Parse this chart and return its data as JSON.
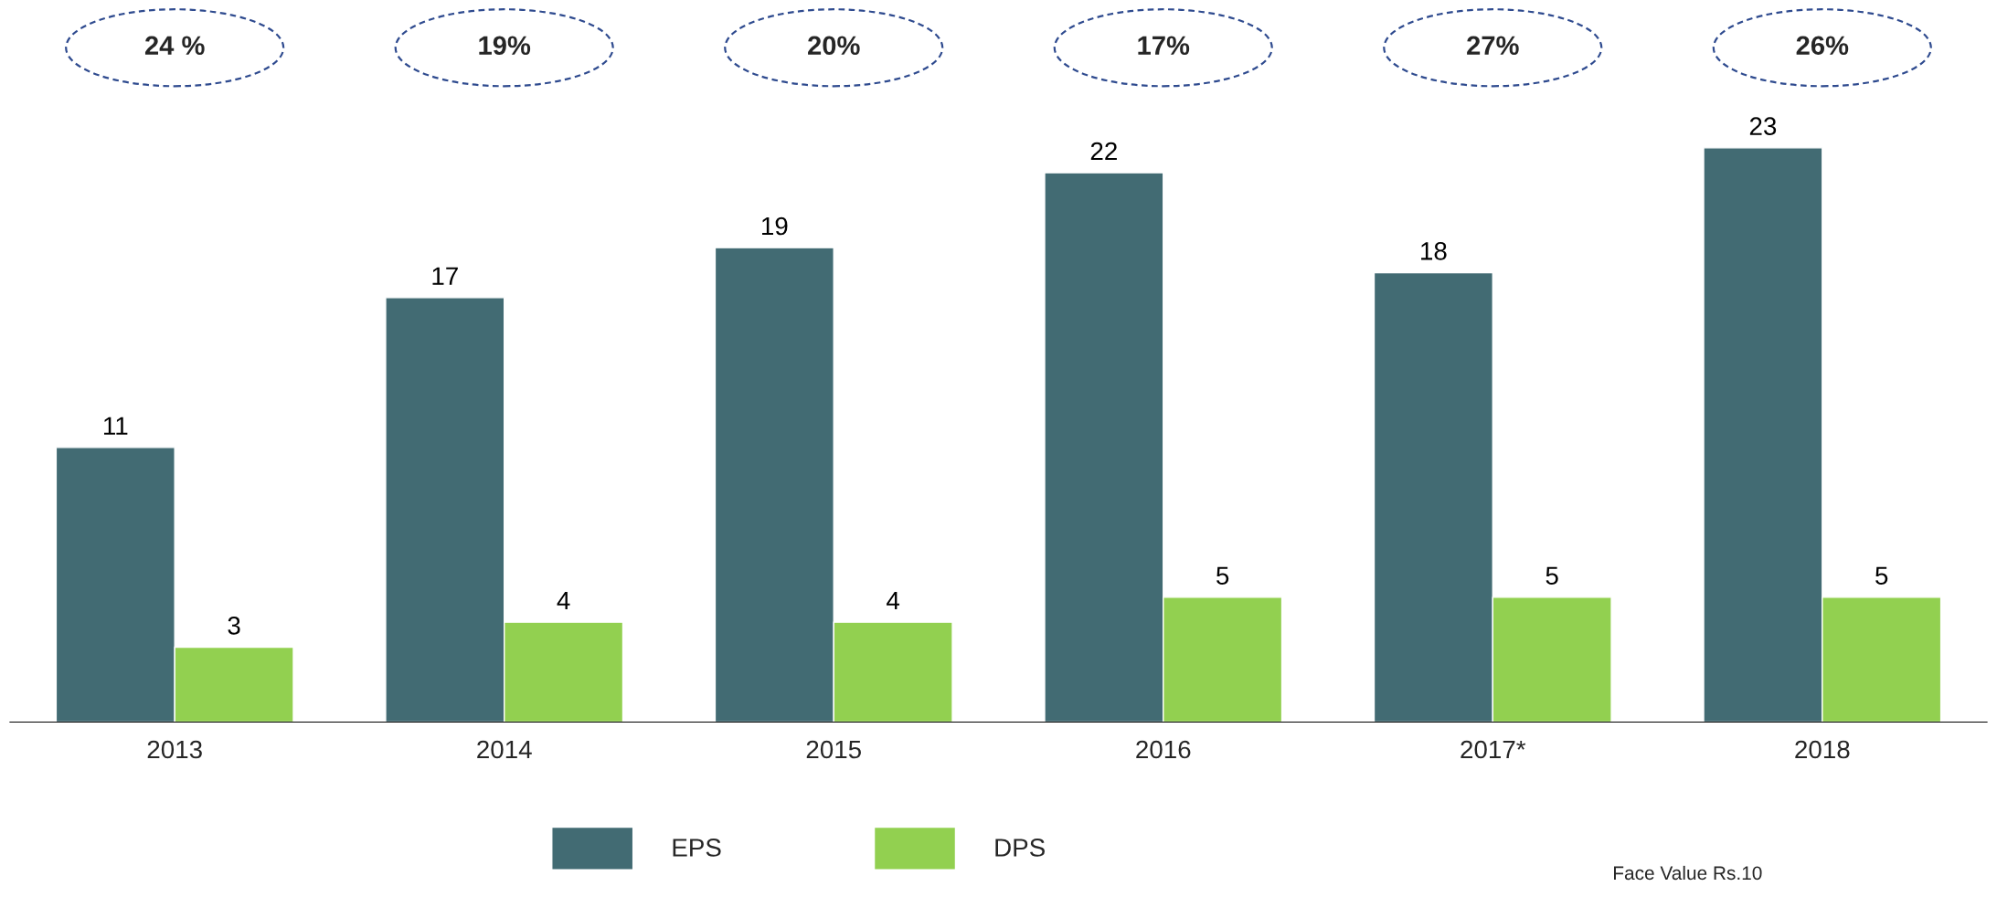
{
  "chart_data": {
    "type": "bar",
    "categories": [
      "2013",
      "2014",
      "2015",
      "2016",
      "2017*",
      "2018"
    ],
    "series": [
      {
        "name": "EPS",
        "color": "#426b73",
        "values": [
          11,
          17,
          19,
          22,
          18,
          23
        ]
      },
      {
        "name": "DPS",
        "color": "#92d050",
        "values": [
          3,
          4,
          4,
          5,
          5,
          5
        ]
      }
    ],
    "data_labels": true,
    "legend": "bottom",
    "annotations": [
      "24 %",
      "19%",
      "20%",
      "17%",
      "27%",
      "26%",
      "Face Value Rs.10"
    ]
  }
}
